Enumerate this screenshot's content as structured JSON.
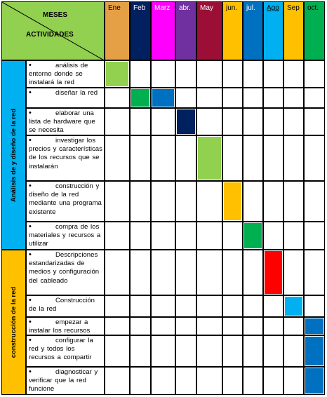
{
  "header": {
    "meses_label": "MESES",
    "actividades_label": "ACTIVIDADES"
  },
  "months": [
    {
      "label": "Ene",
      "bg": "#e5a046",
      "fg": "#000000",
      "underline": false
    },
    {
      "label": "Feb",
      "bg": "#002060",
      "fg": "#ffffff",
      "underline": false
    },
    {
      "label": "Marz",
      "bg": "#ff00ff",
      "fg": "#ffffff",
      "underline": false
    },
    {
      "label": "abr.",
      "bg": "#7030a0",
      "fg": "#ffffff",
      "underline": false
    },
    {
      "label": "May",
      "bg": "#9b0f36",
      "fg": "#ffffff",
      "underline": false
    },
    {
      "label": "jun.",
      "bg": "#ffc000",
      "fg": "#000000",
      "underline": false
    },
    {
      "label": "jul.",
      "bg": "#0070c0",
      "fg": "#ffffff",
      "underline": false
    },
    {
      "label": "Ago",
      "bg": "#00b0f0",
      "fg": "#000000",
      "underline": true
    },
    {
      "label": "Sep",
      "bg": "#ffc000",
      "fg": "#000000",
      "underline": false
    },
    {
      "label": "oct.",
      "bg": "#00b050",
      "fg": "#000000",
      "underline": false
    }
  ],
  "phases": [
    {
      "label": "Análisis de y diseño de la red",
      "color": "#00b0f0"
    },
    {
      "label": "construcción de la red",
      "color": "#ffc000"
    }
  ],
  "activities": [
    {
      "text": "análisis de entorno donde se instalará la red",
      "phase": 0,
      "marks": [
        {
          "month": 0,
          "color": "#92d050"
        }
      ]
    },
    {
      "text": "diseñar la red",
      "phase": 0,
      "marks": [
        {
          "month": 1,
          "color": "#00b050"
        },
        {
          "month": 2,
          "color": "#0070c0"
        }
      ]
    },
    {
      "text": "elaborar una lista de hardware que se necesita",
      "phase": 0,
      "marks": [
        {
          "month": 3,
          "color": "#002060"
        }
      ]
    },
    {
      "text": "investigar los precios y características de los recursos que se instalarán",
      "phase": 0,
      "marks": [
        {
          "month": 4,
          "color": "#92d050"
        }
      ]
    },
    {
      "text": "construcción y diseño de la red mediante una programa existente",
      "phase": 0,
      "marks": [
        {
          "month": 5,
          "color": "#ffc000"
        }
      ]
    },
    {
      "text": "compra de los materiales y recursos a utilizar",
      "phase": 0,
      "marks": [
        {
          "month": 6,
          "color": "#00b050"
        }
      ]
    },
    {
      "text": "Descripciones estandarizadas de medios y configuración del cableado",
      "phase": 1,
      "marks": [
        {
          "month": 7,
          "color": "#ff0000"
        }
      ]
    },
    {
      "text": "Construcción de la red",
      "phase": 1,
      "marks": [
        {
          "month": 8,
          "color": "#00b0f0"
        }
      ]
    },
    {
      "text": "empezar a instalar los recursos",
      "phase": 1,
      "marks": [
        {
          "month": 9,
          "color": "#0070c0"
        }
      ]
    },
    {
      "text": "configurar la red y todos los recursos a compartir",
      "phase": 1,
      "marks": [
        {
          "month": 9,
          "color": "#0070c0"
        }
      ]
    },
    {
      "text": "diagnosticar y verificar que la red funcione",
      "phase": 1,
      "marks": [
        {
          "month": 9,
          "color": "#0070c0"
        }
      ]
    }
  ]
}
